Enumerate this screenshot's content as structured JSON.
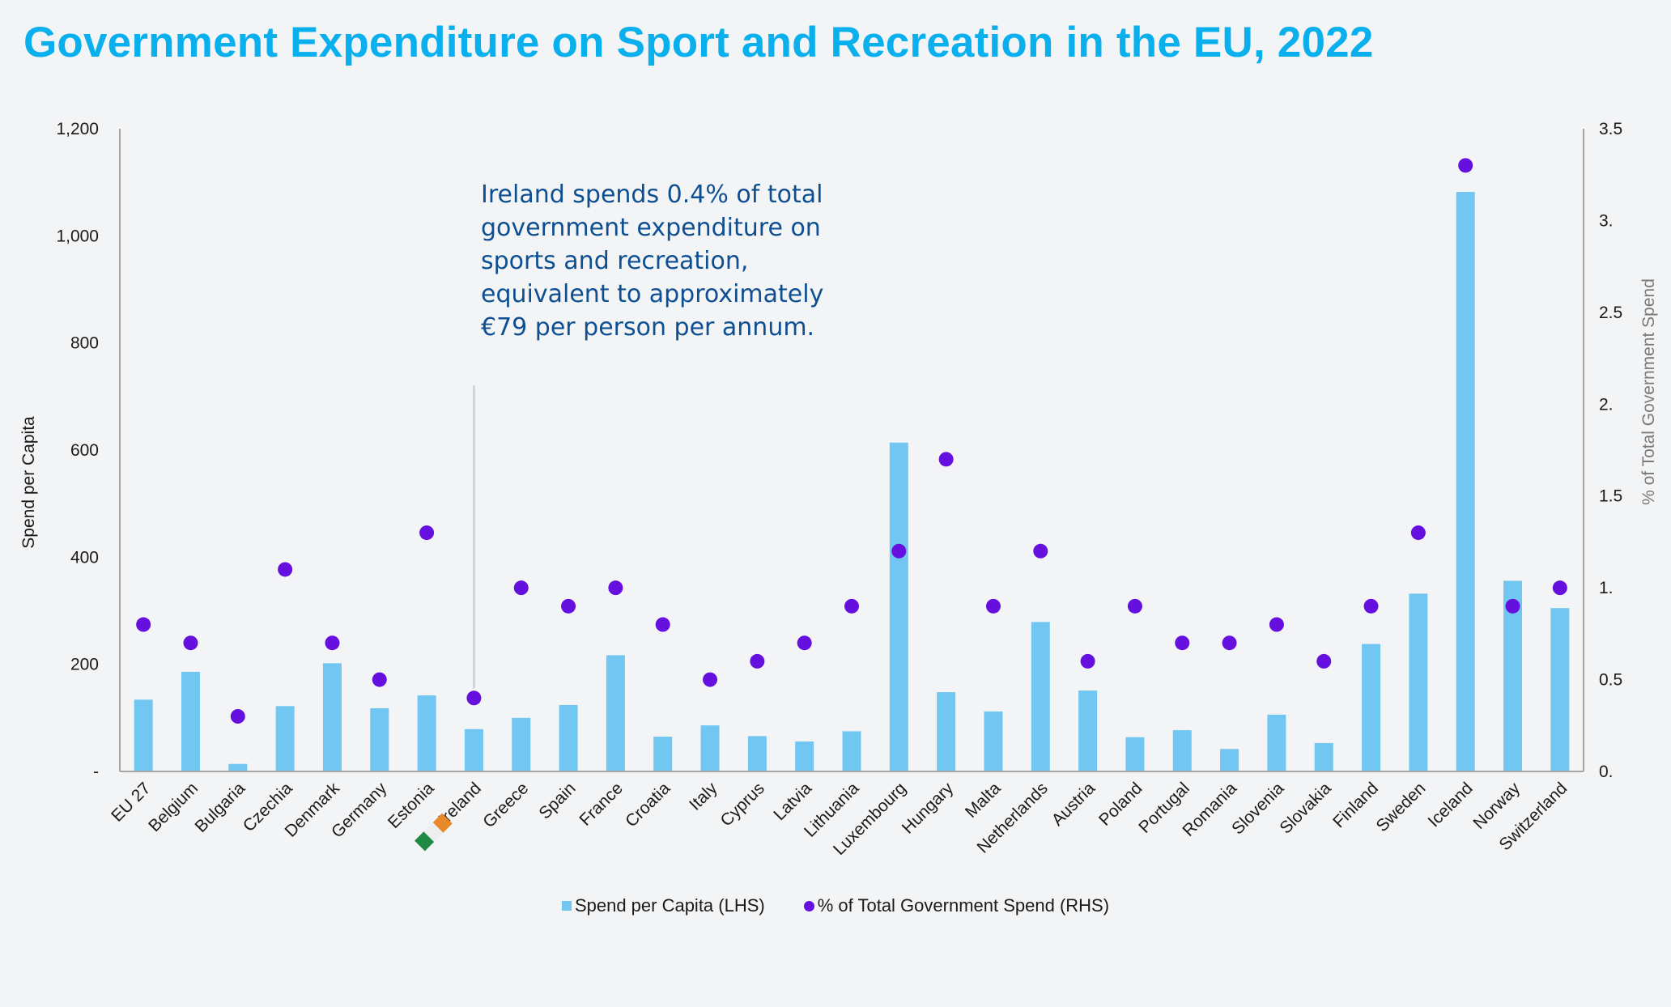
{
  "title": "Government Expenditure on Sport and Recreation in the EU, 2022",
  "annotation": {
    "lines": [
      "Ireland spends 0.4% of total",
      "government expenditure on",
      "sports and recreation,",
      "equivalent to approximately",
      "€79 per person per annum."
    ],
    "target_category": "Ireland"
  },
  "flag": {
    "icon": "ireland-flag-icon",
    "colors": [
      "#1e8a44",
      "#eeeeee",
      "#e8892a"
    ]
  },
  "colors": {
    "title": "#0ab0ee",
    "bar": "#72c7f2",
    "dot": "#6610e0",
    "annotation_text": "#0e4f92",
    "background": "#f3f4f6"
  },
  "legend": {
    "bar_label": "Spend per Capita (LHS)",
    "dot_label": "% of Total Government Spend (RHS)"
  },
  "chart_data": {
    "type": "bar",
    "title": "Government Expenditure on Sport and Recreation in the EU, 2022",
    "xlabel": "",
    "ylabel": "Spend per Capita",
    "y2label": "% of Total Government Spend",
    "ylim": [
      0,
      1200
    ],
    "y2lim": [
      0,
      3.5
    ],
    "yticks": [
      0,
      200,
      400,
      600,
      800,
      1000,
      1200
    ],
    "ytick_labels": [
      "-",
      "200",
      "400",
      "600",
      "800",
      "1,000",
      "1,200"
    ],
    "y2ticks": [
      0,
      0.5,
      1,
      1.5,
      2,
      2.5,
      3,
      3.5
    ],
    "y2tick_labels": [
      "0.",
      "0.5",
      "1.",
      "1.5",
      "2.",
      "2.5",
      "3.",
      "3.5"
    ],
    "grid": false,
    "legend_position": "bottom-center",
    "categories": [
      "EU 27",
      "Belgium",
      "Bulgaria",
      "Czechia",
      "Denmark",
      "Germany",
      "Estonia",
      "Ireland",
      "Greece",
      "Spain",
      "France",
      "Croatia",
      "Italy",
      "Cyprus",
      "Latvia",
      "Lithuania",
      "Luxembourg",
      "Hungary",
      "Malta",
      "Netherlands",
      "Austria",
      "Poland",
      "Portugal",
      "Romania",
      "Slovenia",
      "Slovakia",
      "Finland",
      "Sweden",
      "Iceland",
      "Norway",
      "Switzerland"
    ],
    "series": [
      {
        "name": "Spend per Capita (LHS)",
        "type": "bar",
        "axis": "left",
        "values": [
          134,
          186,
          14,
          122,
          202,
          118,
          142,
          79,
          100,
          124,
          217,
          65,
          86,
          66,
          56,
          75,
          614,
          148,
          112,
          279,
          151,
          64,
          77,
          42,
          106,
          53,
          238,
          332,
          1082,
          356,
          305
        ]
      },
      {
        "name": "% of Total Government Spend (RHS)",
        "type": "scatter",
        "axis": "right",
        "values": [
          0.8,
          0.7,
          0.3,
          1.1,
          0.7,
          0.5,
          1.3,
          0.4,
          1.0,
          0.9,
          1.0,
          0.8,
          0.5,
          0.6,
          0.7,
          0.9,
          1.2,
          1.7,
          0.9,
          1.2,
          0.6,
          0.9,
          0.7,
          0.7,
          0.8,
          0.6,
          0.9,
          1.3,
          3.3,
          0.9,
          1.0
        ]
      }
    ]
  }
}
